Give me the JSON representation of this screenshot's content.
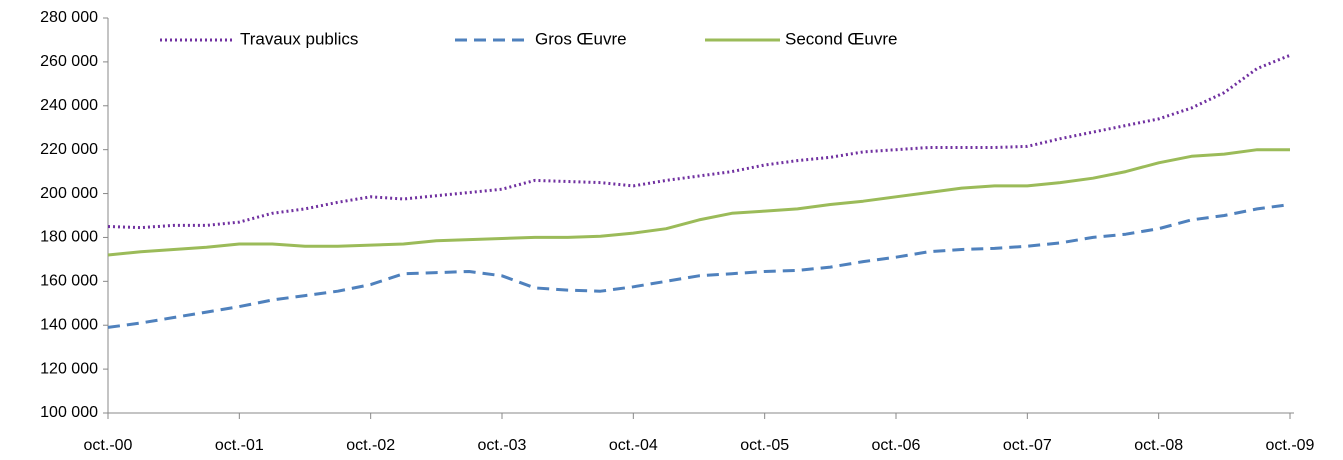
{
  "chart_data": {
    "type": "line",
    "categories": [
      "oct.-00",
      null,
      null,
      null,
      "oct.-01",
      null,
      null,
      null,
      "oct.-02",
      null,
      null,
      null,
      "oct.-03",
      null,
      null,
      null,
      "oct.-04",
      null,
      null,
      null,
      "oct.-05",
      null,
      null,
      null,
      "oct.-06",
      null,
      null,
      null,
      "oct.-07",
      null,
      null,
      null,
      "oct.-08",
      null,
      null,
      null,
      "oct.-09"
    ],
    "series": [
      {
        "name": "Travaux publics",
        "color": "#7030a0",
        "style": "dotted",
        "values": [
          185000,
          184500,
          185500,
          185500,
          187000,
          191000,
          193000,
          196000,
          198500,
          197500,
          199000,
          200500,
          202000,
          206000,
          205500,
          205000,
          203500,
          206000,
          208000,
          210000,
          213000,
          215000,
          216500,
          219000,
          220000,
          221000,
          221000,
          221000,
          221500,
          225000,
          228000,
          231000,
          234000,
          239000,
          246000,
          257000,
          263000
        ]
      },
      {
        "name": "Gros Œuvre",
        "color": "#4f81bd",
        "style": "dashed",
        "values": [
          139000,
          141000,
          143500,
          146000,
          148500,
          151500,
          153500,
          155500,
          158500,
          163500,
          164000,
          164500,
          162500,
          157000,
          156000,
          155500,
          157500,
          160000,
          162500,
          163500,
          164500,
          165000,
          166500,
          169000,
          171000,
          173500,
          174500,
          175000,
          176000,
          177500,
          180000,
          181500,
          184000,
          188000,
          190000,
          193000,
          195000
        ]
      },
      {
        "name": "Second Œuvre",
        "color": "#9bbb59",
        "style": "solid",
        "values": [
          172000,
          173500,
          174500,
          175500,
          177000,
          177000,
          176000,
          176000,
          176500,
          177000,
          178500,
          179000,
          179500,
          180000,
          180000,
          180500,
          182000,
          184000,
          188000,
          191000,
          192000,
          193000,
          195000,
          196500,
          198500,
          200500,
          202500,
          203500,
          203500,
          205000,
          207000,
          210000,
          214000,
          217000,
          218000,
          220000,
          220000
        ]
      }
    ],
    "ylim": [
      100000,
      280000
    ],
    "yticks": [
      {
        "value": 100000,
        "label": "100 000"
      },
      {
        "value": 120000,
        "label": "120 000"
      },
      {
        "value": 140000,
        "label": "140 000"
      },
      {
        "value": 160000,
        "label": "160 000"
      },
      {
        "value": 180000,
        "label": "180 000"
      },
      {
        "value": 200000,
        "label": "200 000"
      },
      {
        "value": 220000,
        "label": "220 000"
      },
      {
        "value": 240000,
        "label": "240 000"
      },
      {
        "value": 260000,
        "label": "260 000"
      },
      {
        "value": 280000,
        "label": "280 000"
      }
    ],
    "grid": false,
    "legend": "top"
  }
}
